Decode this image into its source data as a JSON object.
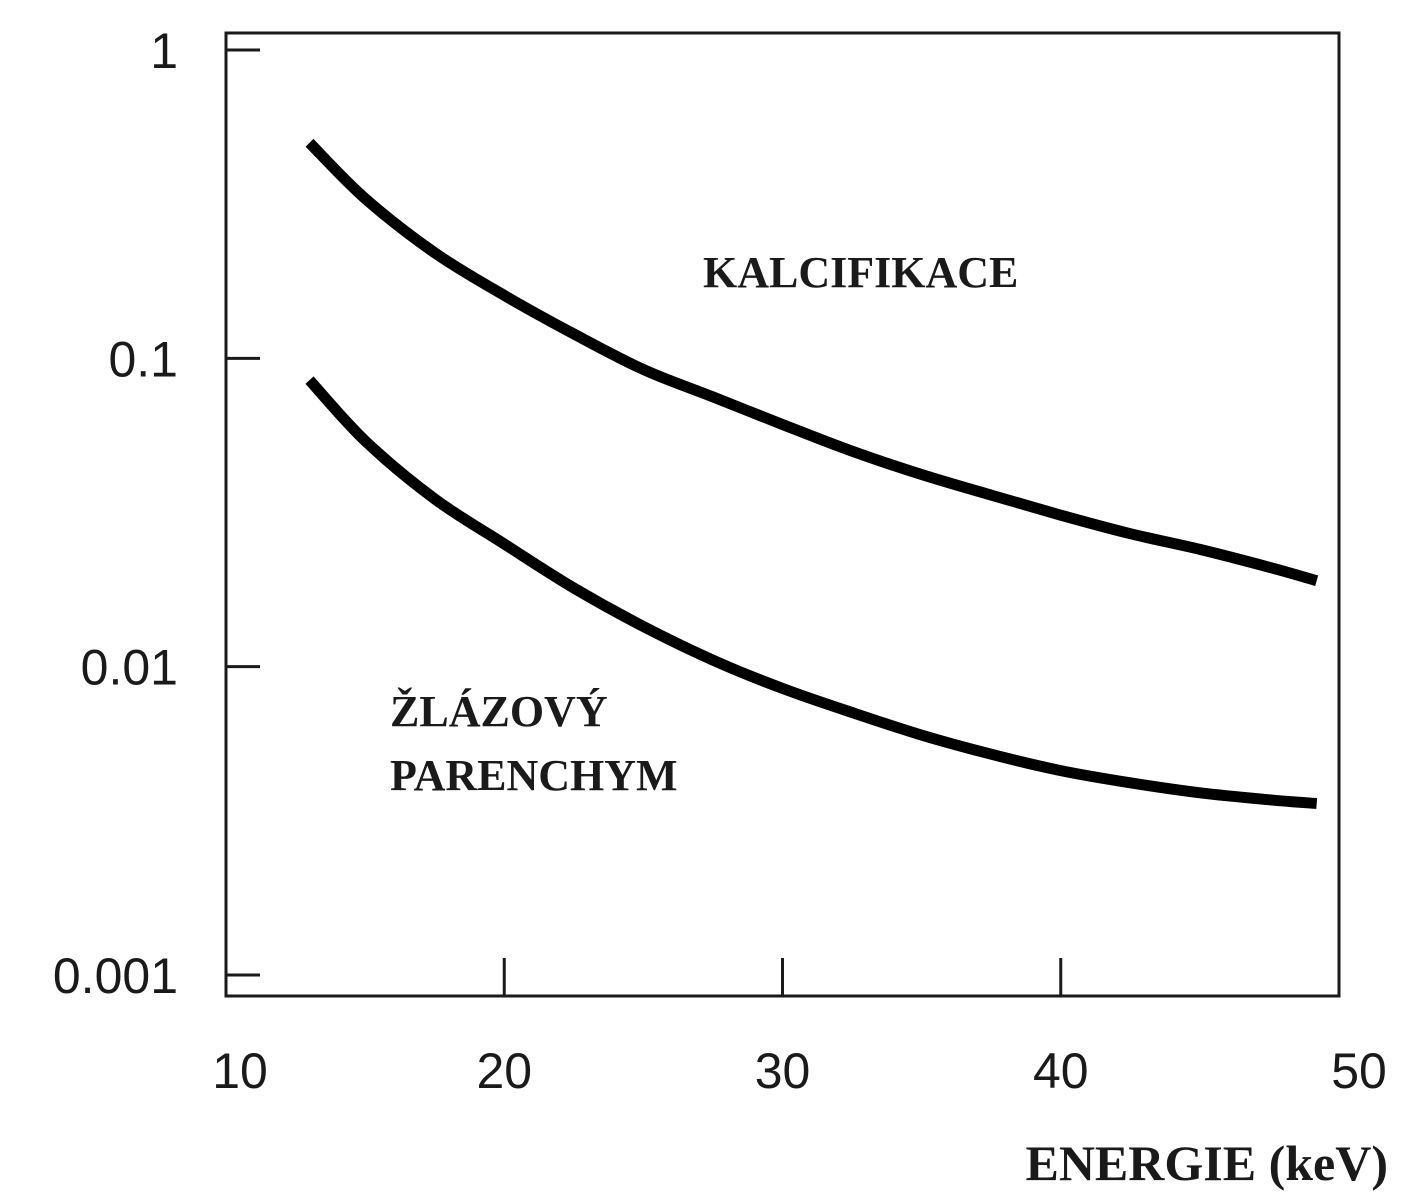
{
  "chart_data": {
    "type": "line",
    "title": "",
    "xlabel": "ENERGIE (keV)",
    "ylabel": "",
    "xlim": [
      10,
      50
    ],
    "ylim": [
      0.001,
      1
    ],
    "y_scale": "log",
    "grid": false,
    "legend": "none",
    "x_ticks": [
      10,
      20,
      30,
      40,
      50
    ],
    "x_tick_labels": [
      "10",
      "20",
      "30",
      "40",
      "50"
    ],
    "y_ticks": [
      0.001,
      0.01,
      0.1,
      1
    ],
    "y_tick_labels": [
      "0.001",
      "0.01",
      "0.1",
      "1"
    ],
    "annotations": [
      {
        "id": "kalcifikace",
        "lines": [
          "KALCIFIKACE"
        ]
      },
      {
        "id": "parenchym",
        "lines": [
          "ŽLÁZOVÝ",
          "PARENCHYM"
        ]
      }
    ],
    "series": [
      {
        "x": [
          13,
          15,
          17.5,
          20,
          22.5,
          25,
          27.5,
          30,
          32.5,
          35,
          37.5,
          40,
          42.5,
          45,
          47.5,
          49.2
        ],
        "values": [
          0.5,
          0.33,
          0.22,
          0.16,
          0.12,
          0.092,
          0.075,
          0.061,
          0.05,
          0.042,
          0.036,
          0.031,
          0.027,
          0.024,
          0.021,
          0.019
        ],
        "color": "#000000"
      },
      {
        "x": [
          13,
          15,
          17.5,
          20,
          22.5,
          25,
          27.5,
          30,
          32.5,
          35,
          37.5,
          40,
          42.5,
          45,
          47.5,
          49.2
        ],
        "values": [
          0.085,
          0.054,
          0.035,
          0.025,
          0.018,
          0.0135,
          0.0105,
          0.0085,
          0.0071,
          0.006,
          0.0052,
          0.0046,
          0.0042,
          0.0039,
          0.0037,
          0.0036
        ],
        "color": "#000000"
      }
    ]
  }
}
